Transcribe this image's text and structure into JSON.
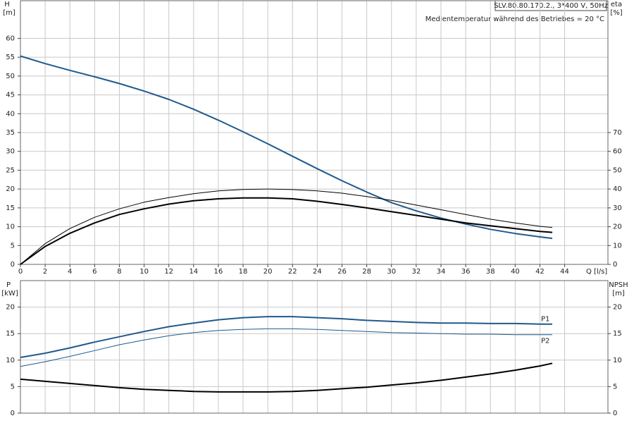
{
  "chart_data": [
    {
      "type": "line",
      "title": "SLV.80.80.170.2., 3*400 V, 50Hz",
      "subtitle": "Medientemperatur während des Betriebes = 20 °C",
      "y_label": "H",
      "y_unit": "[m]",
      "y2_label": "eta",
      "y2_unit": "[%]",
      "x_label": "Q [l/s]",
      "x": [
        0,
        2,
        4,
        6,
        8,
        10,
        12,
        14,
        16,
        18,
        20,
        22,
        24,
        26,
        28,
        30,
        32,
        34,
        36,
        38,
        40,
        42,
        43
      ],
      "xlim": [
        0,
        47.5
      ],
      "xticks": [
        0,
        2,
        4,
        6,
        8,
        10,
        12,
        14,
        16,
        18,
        20,
        22,
        24,
        26,
        28,
        30,
        32,
        34,
        36,
        38,
        40,
        42,
        44
      ],
      "ylim": [
        0,
        70
      ],
      "yticks": [
        0,
        5,
        10,
        15,
        20,
        25,
        30,
        35,
        40,
        45,
        50,
        55,
        60
      ],
      "y2lim": [
        0,
        140
      ],
      "y2ticks": [
        0,
        10,
        20,
        30,
        40,
        50,
        60,
        70
      ],
      "grid": true,
      "series": [
        {
          "color": "#1f5a8c",
          "width": 2,
          "axis": "y",
          "values": [
            55.3,
            53.3,
            51.5,
            49.8,
            48,
            46,
            43.8,
            41.2,
            38.3,
            35.2,
            32,
            28.7,
            25.4,
            22.2,
            19.2,
            16.4,
            14.2,
            12.3,
            10.7,
            9.3,
            8.2,
            7.3,
            6.9
          ]
        },
        {
          "color": "#000000",
          "width": 1,
          "axis": "y2",
          "values": [
            0,
            11,
            19,
            25,
            29.5,
            33,
            35.5,
            37.5,
            39,
            39.8,
            40,
            39.7,
            39,
            37.8,
            36,
            34,
            31.5,
            29,
            26.5,
            24,
            22,
            20.2,
            19.6
          ]
        },
        {
          "color": "#000000",
          "width": 2,
          "axis": "y2",
          "values": [
            0,
            9.5,
            16.5,
            22,
            26.5,
            29.5,
            32,
            33.8,
            34.8,
            35.3,
            35.3,
            34.8,
            33.5,
            31.8,
            30,
            28,
            26,
            24,
            22,
            20.5,
            19,
            17.5,
            17
          ]
        }
      ]
    },
    {
      "type": "line",
      "y_label": "P",
      "y_unit": "[kW]",
      "y2_label": "NPSH",
      "y2_unit": "[m]",
      "x": [
        0,
        2,
        4,
        6,
        8,
        10,
        12,
        14,
        16,
        18,
        20,
        22,
        24,
        26,
        28,
        30,
        32,
        34,
        36,
        38,
        40,
        42,
        43
      ],
      "ylim": [
        0,
        25
      ],
      "yticks": [
        0,
        5,
        10,
        15,
        20
      ],
      "y2lim": [
        0,
        25
      ],
      "y2ticks": [
        0,
        5,
        10,
        15,
        20
      ],
      "grid": true,
      "series": [
        {
          "name": "P1",
          "color": "#1f5a8c",
          "width": 2,
          "axis": "y",
          "values": [
            10.5,
            11.3,
            12.3,
            13.4,
            14.4,
            15.4,
            16.3,
            17,
            17.6,
            18,
            18.2,
            18.2,
            18,
            17.8,
            17.5,
            17.3,
            17.1,
            17,
            17,
            16.9,
            16.9,
            16.8,
            16.8
          ]
        },
        {
          "name": "P2",
          "color": "#1f5a8c",
          "width": 1,
          "axis": "y",
          "values": [
            8.8,
            9.7,
            10.7,
            11.8,
            12.9,
            13.8,
            14.6,
            15.2,
            15.6,
            15.8,
            15.9,
            15.9,
            15.8,
            15.6,
            15.4,
            15.2,
            15.1,
            15,
            14.9,
            14.9,
            14.8,
            14.8,
            14.8
          ]
        },
        {
          "color": "#000000",
          "width": 2,
          "axis": "y2",
          "values": [
            6.4,
            6,
            5.6,
            5.2,
            4.8,
            4.5,
            4.3,
            4.1,
            4,
            4,
            4,
            4.1,
            4.3,
            4.6,
            4.9,
            5.3,
            5.7,
            6.2,
            6.8,
            7.4,
            8.1,
            8.9,
            9.4
          ]
        }
      ]
    }
  ]
}
